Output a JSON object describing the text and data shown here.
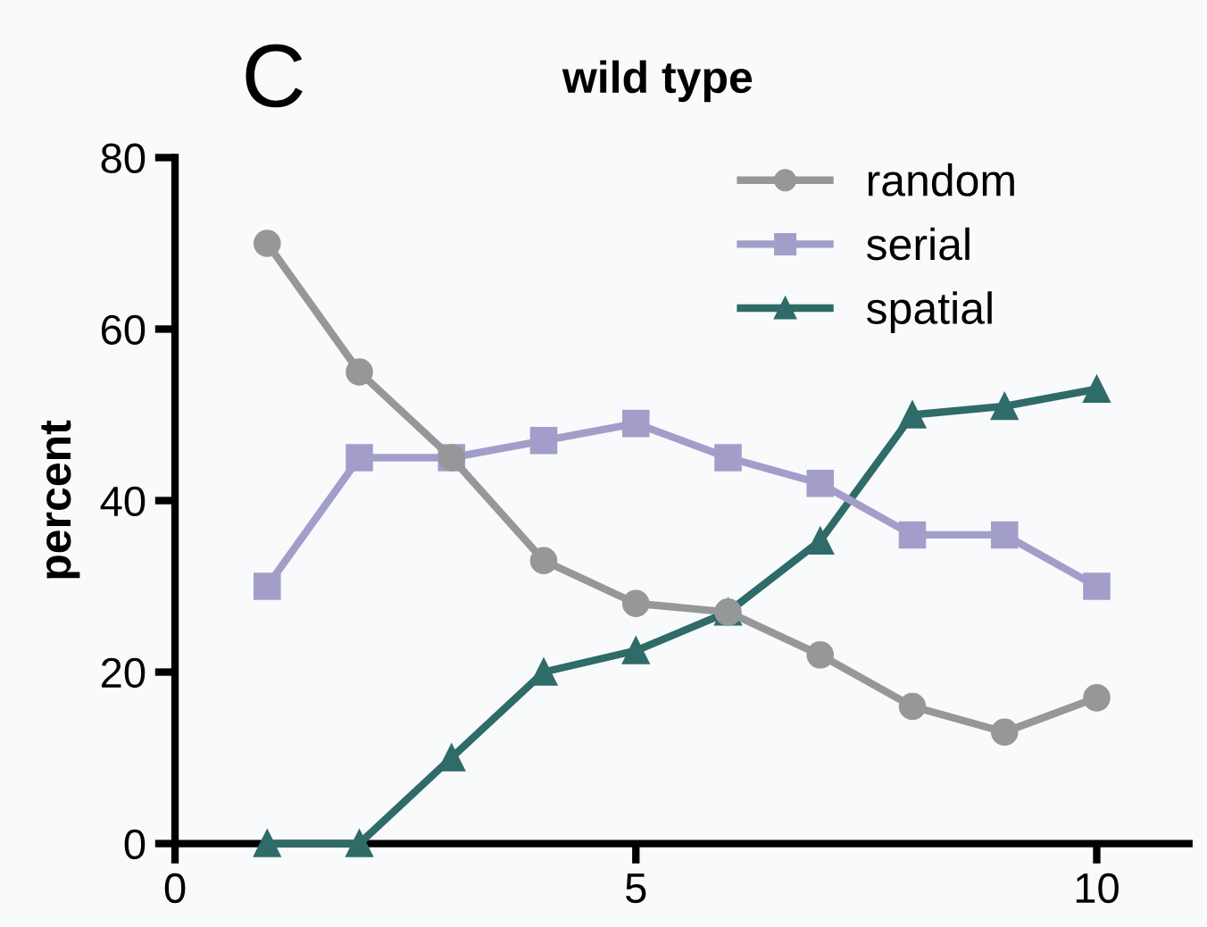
{
  "chart_data": {
    "type": "line",
    "title": "wild type",
    "ylabel": "percent",
    "annotations": [
      "C"
    ],
    "x": [
      1,
      2,
      3,
      4,
      5,
      6,
      7,
      8,
      9,
      10
    ],
    "series": [
      {
        "name": "random",
        "color": "#959799",
        "marker": "circle",
        "values": [
          70,
          55,
          45,
          33,
          28,
          27,
          22,
          16,
          13,
          17
        ]
      },
      {
        "name": "serial",
        "color": "#a29ec9",
        "marker": "square",
        "values": [
          30,
          45,
          45,
          47,
          49,
          45,
          42,
          36,
          36,
          30
        ]
      },
      {
        "name": "spatial",
        "color": "#2f6b68",
        "marker": "triangle",
        "values": [
          0,
          0,
          10,
          20,
          22.5,
          27,
          35.3,
          50,
          51,
          53
        ]
      }
    ],
    "xlim": [
      0,
      11
    ],
    "xticks": [
      0,
      5,
      10
    ],
    "ylim": [
      0,
      80
    ],
    "yticks": [
      0,
      20,
      40,
      60,
      80
    ],
    "grid": false,
    "legend": "top right",
    "line_style": "solid"
  }
}
